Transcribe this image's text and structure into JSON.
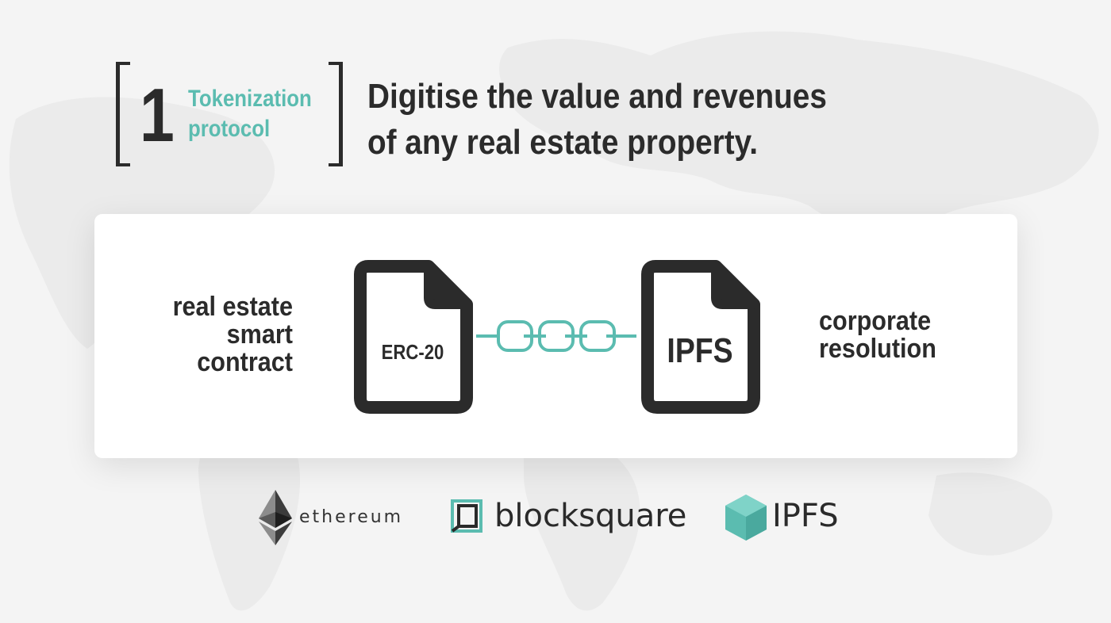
{
  "header": {
    "step_number": "1",
    "step_label_line1": "Tokenization",
    "step_label_line2": "protocol",
    "headline_line1": "Digitise the value and revenues",
    "headline_line2": "of any real estate property."
  },
  "diagram": {
    "left_text_line1": "real estate",
    "left_text_line2": "smart",
    "left_text_line3": "contract",
    "left_doc_label": "ERC-20",
    "right_doc_label": "IPFS",
    "right_text_line1": "corporate",
    "right_text_line2": "resolution"
  },
  "logos": {
    "ethereum": "ethereum",
    "blocksquare": "blocksquare",
    "ipfs": "IPFS"
  },
  "colors": {
    "accent": "#5bbcb0",
    "dark": "#2b2b2b",
    "card": "#ffffff",
    "background": "#f4f4f4"
  }
}
